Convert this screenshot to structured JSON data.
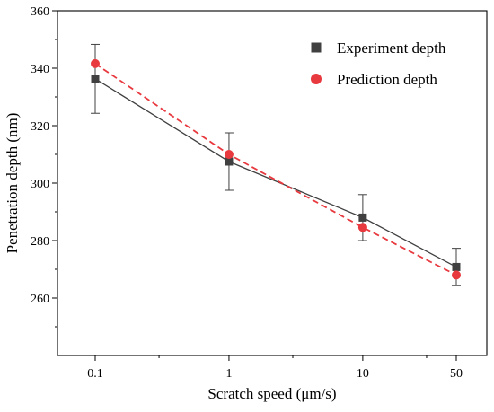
{
  "chart_data": {
    "type": "line",
    "xlabel": "Scratch speed (μm/s)",
    "ylabel": "Penetration depth (nm)",
    "x_scale": "log",
    "x_ticks": [
      0.1,
      1,
      10,
      50
    ],
    "x_tick_labels": [
      "0.1",
      "1",
      "10",
      "50"
    ],
    "y_ticks": [
      260,
      280,
      300,
      320,
      340,
      360
    ],
    "y_tick_labels": [
      "260",
      "280",
      "300",
      "320",
      "340",
      "360"
    ],
    "ylim": [
      240,
      360
    ],
    "grid": false,
    "legend_position": "top-right",
    "series": [
      {
        "name": "Experiment depth",
        "marker": "square",
        "line_style": "solid",
        "color": "#404040",
        "x": [
          0.1,
          1,
          10,
          50
        ],
        "y": [
          336.3,
          307.5,
          288.0,
          270.8
        ],
        "error": [
          12.0,
          10.0,
          8.0,
          6.5
        ]
      },
      {
        "name": "Prediction depth",
        "marker": "circle",
        "line_style": "dashed",
        "color": "#e8393f",
        "x": [
          0.1,
          1,
          10,
          50
        ],
        "y": [
          341.6,
          310.0,
          284.6,
          268.0
        ]
      }
    ]
  }
}
